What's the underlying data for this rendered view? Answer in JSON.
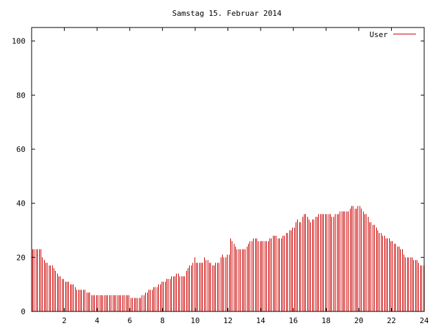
{
  "chart_data": {
    "type": "bar",
    "title": "Samstag 15. Februar 2014",
    "xlabel": "",
    "ylabel": "",
    "xlim": [
      0,
      24
    ],
    "ylim": [
      0,
      105
    ],
    "x_ticks": [
      2,
      4,
      6,
      8,
      10,
      12,
      14,
      16,
      18,
      20,
      22,
      24
    ],
    "x_tick_labels": [
      "2",
      "4",
      "6",
      "8",
      "10",
      "12",
      "14",
      "16",
      "18",
      "20",
      "22",
      "24"
    ],
    "y_ticks": [
      0,
      20,
      40,
      60,
      80,
      100
    ],
    "y_tick_labels": [
      "0",
      "20",
      "40",
      "60",
      "80",
      "100"
    ],
    "grid": false,
    "legend_position": "top-right",
    "series": [
      {
        "name": "User",
        "color": "#cc0000",
        "interval_hours": 0.1,
        "anchors": [
          [
            0.0,
            23
          ],
          [
            0.5,
            23
          ],
          [
            0.6,
            20
          ],
          [
            0.8,
            18
          ],
          [
            1.0,
            17
          ],
          [
            1.2,
            17
          ],
          [
            1.4,
            15
          ],
          [
            1.6,
            13
          ],
          [
            1.8,
            12
          ],
          [
            2.0,
            11
          ],
          [
            2.2,
            11
          ],
          [
            2.4,
            10
          ],
          [
            2.6,
            9
          ],
          [
            2.8,
            8
          ],
          [
            3.2,
            8
          ],
          [
            3.4,
            7
          ],
          [
            3.7,
            6
          ],
          [
            5.9,
            6
          ],
          [
            6.0,
            5
          ],
          [
            6.6,
            5
          ],
          [
            6.8,
            6
          ],
          [
            7.0,
            7
          ],
          [
            7.2,
            8
          ],
          [
            7.6,
            9
          ],
          [
            8.0,
            11
          ],
          [
            8.4,
            12
          ],
          [
            8.6,
            13
          ],
          [
            8.9,
            14
          ],
          [
            9.0,
            13
          ],
          [
            9.3,
            13
          ],
          [
            9.5,
            16
          ],
          [
            9.8,
            18
          ],
          [
            9.9,
            20
          ],
          [
            10.0,
            18
          ],
          [
            10.4,
            18
          ],
          [
            10.5,
            20
          ],
          [
            10.8,
            18
          ],
          [
            11.0,
            17
          ],
          [
            11.4,
            18
          ],
          [
            11.6,
            21
          ],
          [
            11.8,
            20
          ],
          [
            12.0,
            21
          ],
          [
            12.1,
            27
          ],
          [
            12.3,
            25
          ],
          [
            12.5,
            23
          ],
          [
            13.0,
            23
          ],
          [
            13.3,
            26
          ],
          [
            13.6,
            27
          ],
          [
            14.0,
            26
          ],
          [
            14.3,
            26
          ],
          [
            14.6,
            27
          ],
          [
            14.8,
            28
          ],
          [
            15.0,
            27
          ],
          [
            15.2,
            27
          ],
          [
            15.5,
            29
          ],
          [
            15.8,
            30
          ],
          [
            16.0,
            31
          ],
          [
            16.2,
            34
          ],
          [
            16.4,
            33
          ],
          [
            16.6,
            36
          ],
          [
            16.8,
            35
          ],
          [
            17.0,
            33
          ],
          [
            17.3,
            35
          ],
          [
            17.6,
            36
          ],
          [
            18.0,
            36
          ],
          [
            18.4,
            35
          ],
          [
            18.8,
            37
          ],
          [
            19.0,
            37
          ],
          [
            19.3,
            37
          ],
          [
            19.5,
            39
          ],
          [
            19.8,
            38
          ],
          [
            20.0,
            39
          ],
          [
            20.2,
            37
          ],
          [
            20.4,
            36
          ],
          [
            20.6,
            33
          ],
          [
            20.9,
            32
          ],
          [
            21.1,
            30
          ],
          [
            21.4,
            28
          ],
          [
            21.7,
            27
          ],
          [
            22.0,
            26
          ],
          [
            22.3,
            24
          ],
          [
            22.6,
            23
          ],
          [
            22.8,
            20
          ],
          [
            23.0,
            20
          ],
          [
            23.2,
            20
          ],
          [
            23.4,
            19
          ],
          [
            23.6,
            18
          ],
          [
            23.8,
            17
          ],
          [
            23.9,
            17
          ]
        ]
      }
    ]
  }
}
